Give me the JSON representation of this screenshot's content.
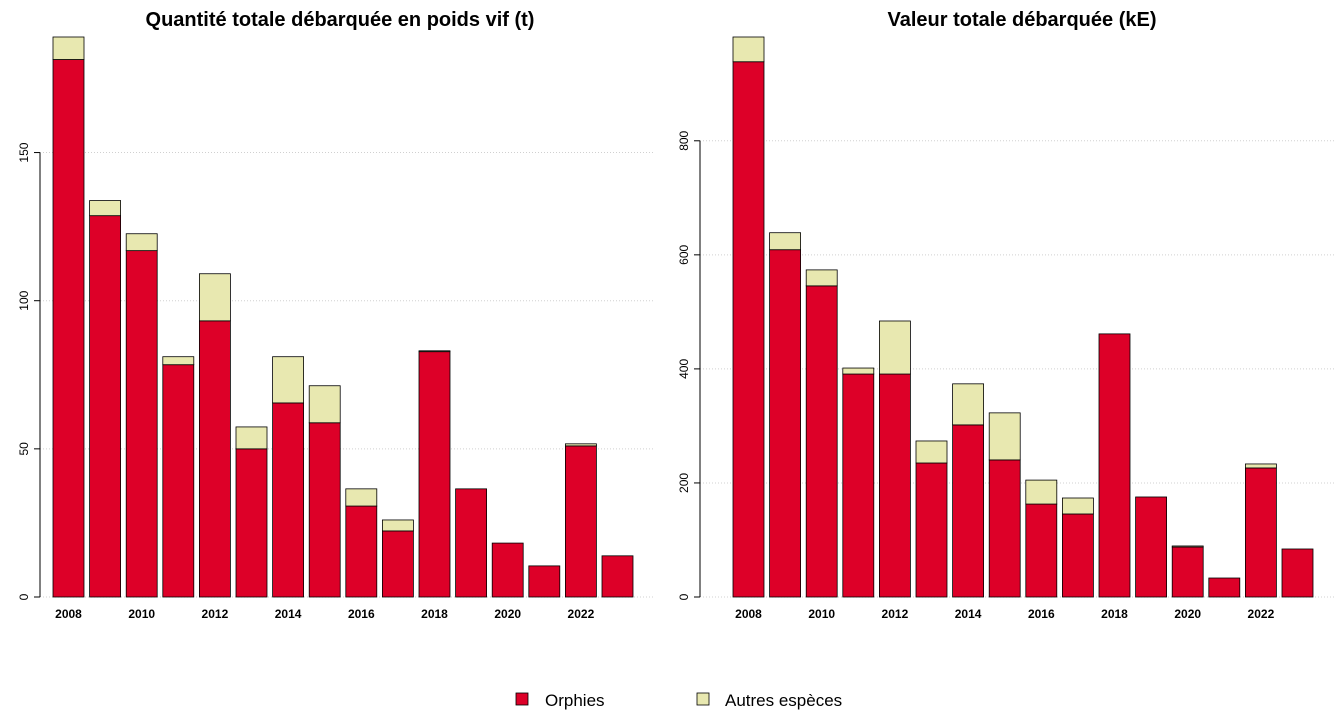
{
  "chart_data": [
    {
      "type": "stacked-bar",
      "title": "Quantité totale débarquée en poids vif (t)",
      "categories": [
        "2008",
        null,
        "2010",
        null,
        "2012",
        null,
        "2014",
        null,
        "2016",
        null,
        "2018",
        null,
        "2020",
        null,
        "2022",
        null
      ],
      "series": [
        {
          "name": "Orphies",
          "color": "#dd0028",
          "values": [
            181.4,
            128.7,
            116.9,
            78.4,
            93.2,
            50,
            65.5,
            58.8,
            30.7,
            22.3,
            82.8,
            36.5,
            18.2,
            10.5,
            51,
            13.9
          ]
        },
        {
          "name": "Autres espèces",
          "color": "#e8e8b0",
          "values": [
            7.6,
            5.1,
            5.7,
            2.7,
            15.9,
            7.4,
            15.6,
            12.5,
            5.8,
            3.7,
            0.3,
            0,
            0,
            0,
            0.7,
            0
          ]
        }
      ],
      "ylim": [
        0,
        189
      ],
      "yticks": [
        0,
        50,
        100,
        150
      ],
      "grid": true
    },
    {
      "type": "stacked-bar",
      "title": "Valeur totale débarquée (kE)",
      "categories": [
        "2008",
        null,
        "2010",
        null,
        "2012",
        null,
        "2014",
        null,
        "2016",
        null,
        "2018",
        null,
        "2020",
        null,
        "2022",
        null
      ],
      "series": [
        {
          "name": "Orphies",
          "color": "#dd0028",
          "values": [
            938.6,
            609,
            545.6,
            391,
            391,
            235,
            301.8,
            240.4,
            163,
            145.6,
            461.4,
            175.4,
            87.7,
            33.3,
            226.3,
            84.2
          ]
        },
        {
          "name": "Autres espèces",
          "color": "#e8e8b0",
          "values": [
            43.4,
            29.8,
            28,
            10.5,
            93,
            38.6,
            72,
            82.5,
            42,
            28,
            0,
            0,
            1.8,
            0,
            7,
            0
          ]
        }
      ],
      "ylim": [
        0,
        982
      ],
      "yticks": [
        0,
        200,
        400,
        600,
        800
      ],
      "grid": true
    }
  ]
}
